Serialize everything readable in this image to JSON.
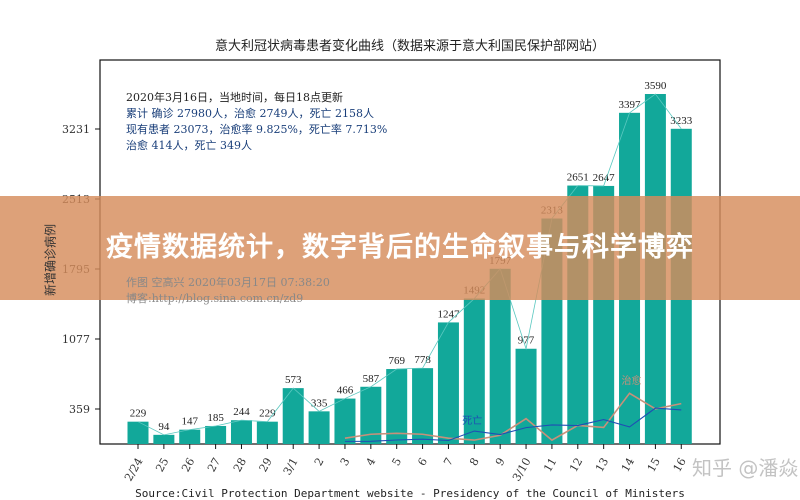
{
  "chart_data": {
    "type": "bar",
    "title": "意大利冠状病毒患者变化曲线（数据来源于意大利国民保护部网站）",
    "ylabel": "新增确诊病例",
    "xlabel": "",
    "source": "Source:Civil Protection Department website - Presidency of the Council of Ministers",
    "yticks": [
      359,
      1077,
      1795,
      2513,
      3231
    ],
    "ylim": [
      0,
      3900
    ],
    "grid": false,
    "categories": [
      "2/24",
      "25",
      "26",
      "27",
      "28",
      "29",
      "3/1",
      "2",
      "3",
      "4",
      "5",
      "6",
      "7",
      "8",
      "9",
      "3/10",
      "11",
      "12",
      "13",
      "14",
      "15",
      "16"
    ],
    "values": [
      229,
      94,
      147,
      185,
      244,
      229,
      573,
      335,
      466,
      587,
      769,
      778,
      1247,
      1492,
      1797,
      977,
      2313,
      2651,
      2647,
      3397,
      3590,
      3233
    ],
    "bar_color": "#12a89a",
    "lines": [
      {
        "name": "治愈",
        "color": "#c8907a",
        "start_index": 8,
        "values": [
          60,
          100,
          110,
          100,
          60,
          40,
          90,
          260,
          40,
          190,
          170,
          520,
          360,
          414
        ]
      },
      {
        "name": "死亡",
        "color": "#1f4fb4",
        "start_index": 8,
        "values": [
          27,
          28,
          41,
          49,
          36,
          133,
          97,
          168,
          196,
          189,
          250,
          175,
          368,
          349
        ]
      }
    ],
    "annotations": [
      "2020年3月16日，当地时间，每日18点更新",
      "累计  确诊  27980人，治愈  2749人，死亡  2158人",
      "现有患者  23073，治愈率  9.825%，死亡率  7.713%",
      "治愈  414人，死亡  349人"
    ],
    "credit": [
      "作图  空高兴  2020年03月17日  07:38:20",
      "博客:http://blog.sina.com.cn/zd9"
    ]
  },
  "banner": {
    "text": "疫情数据统计，数字背后的生命叙事与科学博弈"
  },
  "watermark": "知乎 @潘焱"
}
